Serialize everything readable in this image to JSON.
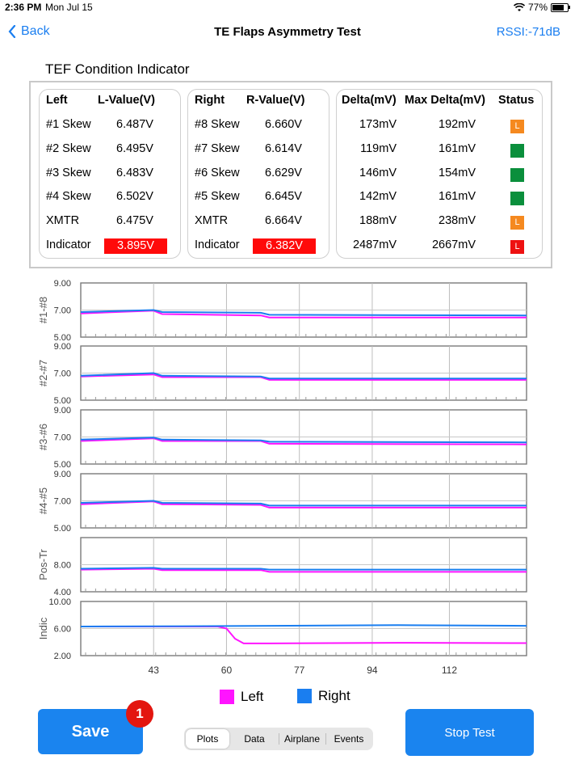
{
  "status_bar": {
    "time": "2:36 PM",
    "date": "Mon Jul 15",
    "battery": "77%"
  },
  "nav": {
    "back_label": "Back",
    "title": "TE Flaps Asymmetry Test",
    "rssi": "RSSI:-71dB"
  },
  "section_title": "TEF Condition Indicator",
  "left_table": {
    "headers": [
      "Left",
      "L-Value(V)"
    ],
    "rows": [
      [
        "#1 Skew",
        "6.487V"
      ],
      [
        "#2 Skew",
        "6.495V"
      ],
      [
        "#3 Skew",
        "6.483V"
      ],
      [
        "#4 Skew",
        "6.502V"
      ],
      [
        "XMTR",
        "6.475V"
      ],
      [
        "Indicator",
        "3.895V"
      ]
    ]
  },
  "right_table": {
    "headers": [
      "Right",
      "R-Value(V)"
    ],
    "rows": [
      [
        "#8 Skew",
        "6.660V"
      ],
      [
        "#7 Skew",
        "6.614V"
      ],
      [
        "#6 Skew",
        "6.629V"
      ],
      [
        "#5 Skew",
        "6.645V"
      ],
      [
        "XMTR",
        "6.664V"
      ],
      [
        "Indicator",
        "6.382V"
      ]
    ]
  },
  "delta_table": {
    "headers": [
      "Delta(mV)",
      "Max Delta(mV)",
      "Status"
    ],
    "rows": [
      {
        "delta": "173mV",
        "max": "192mV",
        "status": "L",
        "color": "#f5891f"
      },
      {
        "delta": "119mV",
        "max": "161mV",
        "status": "",
        "color": "#0a8f3c"
      },
      {
        "delta": "146mV",
        "max": "154mV",
        "status": "",
        "color": "#0a8f3c"
      },
      {
        "delta": "142mV",
        "max": "161mV",
        "status": "",
        "color": "#0a8f3c"
      },
      {
        "delta": "188mV",
        "max": "238mV",
        "status": "L",
        "color": "#f5891f"
      },
      {
        "delta": "2487mV",
        "max": "2667mV",
        "status": "L",
        "color": "#ee1111"
      }
    ]
  },
  "colors": {
    "left": "#ff14ff",
    "right": "#1a7ef0",
    "alert": "#ff0a0a",
    "accent": "#1a84ef"
  },
  "chart_data": {
    "type": "line",
    "x_ticks": [
      "43",
      "60",
      "77",
      "94",
      "112"
    ],
    "xlim": [
      26,
      130
    ],
    "panels": [
      {
        "label": "#1-#8",
        "ylim": [
          5.0,
          9.0
        ],
        "y_ticks": [
          "5.00",
          "7.00",
          "9.00"
        ],
        "series": [
          {
            "name": "Left",
            "x": [
              26,
              43,
              45,
              68,
              70,
              130
            ],
            "y": [
              6.75,
              6.95,
              6.7,
              6.6,
              6.45,
              6.45
            ]
          },
          {
            "name": "Right",
            "x": [
              26,
              43,
              45,
              68,
              70,
              130
            ],
            "y": [
              6.85,
              7.0,
              6.85,
              6.8,
              6.65,
              6.6
            ]
          }
        ]
      },
      {
        "label": "#2-#7",
        "ylim": [
          5.0,
          9.0
        ],
        "y_ticks": [
          "5.00",
          "7.00",
          "9.00"
        ],
        "series": [
          {
            "name": "Left",
            "x": [
              26,
              43,
              45,
              68,
              70,
              130
            ],
            "y": [
              6.75,
              6.9,
              6.7,
              6.7,
              6.5,
              6.5
            ]
          },
          {
            "name": "Right",
            "x": [
              26,
              43,
              45,
              68,
              70,
              130
            ],
            "y": [
              6.8,
              7.0,
              6.8,
              6.75,
              6.6,
              6.6
            ]
          }
        ]
      },
      {
        "label": "#3-#6",
        "ylim": [
          5.0,
          9.0
        ],
        "y_ticks": [
          "5.00",
          "7.00",
          "9.00"
        ],
        "series": [
          {
            "name": "Left",
            "x": [
              26,
              43,
              45,
              68,
              70,
              130
            ],
            "y": [
              6.7,
              6.9,
              6.7,
              6.7,
              6.5,
              6.45
            ]
          },
          {
            "name": "Right",
            "x": [
              26,
              43,
              45,
              68,
              70,
              130
            ],
            "y": [
              6.8,
              6.95,
              6.8,
              6.75,
              6.65,
              6.6
            ]
          }
        ]
      },
      {
        "label": "#4-#5",
        "ylim": [
          5.0,
          9.0
        ],
        "y_ticks": [
          "5.00",
          "7.00",
          "9.00"
        ],
        "series": [
          {
            "name": "Left",
            "x": [
              26,
              43,
              45,
              68,
              70,
              130
            ],
            "y": [
              6.75,
              6.95,
              6.75,
              6.7,
              6.5,
              6.5
            ]
          },
          {
            "name": "Right",
            "x": [
              26,
              43,
              45,
              68,
              70,
              130
            ],
            "y": [
              6.85,
              7.0,
              6.85,
              6.8,
              6.65,
              6.65
            ]
          }
        ]
      },
      {
        "label": "Pos-Tr",
        "ylim": [
          4.0,
          10.0
        ],
        "y_ticks": [
          "4.00",
          "8.00"
        ],
        "series": [
          {
            "name": "Left",
            "x": [
              26,
              43,
              45,
              68,
              70,
              130
            ],
            "y": [
              6.45,
              6.55,
              6.4,
              6.4,
              6.2,
              6.2
            ]
          },
          {
            "name": "Right",
            "x": [
              26,
              43,
              45,
              68,
              70,
              130
            ],
            "y": [
              6.55,
              6.65,
              6.55,
              6.55,
              6.45,
              6.45
            ]
          }
        ]
      },
      {
        "label": "Indic",
        "ylim": [
          2.0,
          10.0
        ],
        "y_ticks": [
          "2.00",
          "6.00",
          "10.00"
        ],
        "series": [
          {
            "name": "Left",
            "x": [
              26,
              58,
              60,
              62,
              64,
              70,
              100,
              130
            ],
            "y": [
              6.3,
              6.3,
              6.0,
              4.5,
              3.8,
              3.8,
              3.9,
              3.85
            ]
          },
          {
            "name": "Right",
            "x": [
              26,
              50,
              70,
              100,
              130
            ],
            "y": [
              6.3,
              6.35,
              6.4,
              6.5,
              6.4
            ]
          }
        ]
      }
    ]
  },
  "legend": {
    "left": "Left",
    "right": "Right"
  },
  "buttons": {
    "save": "Save",
    "badge": "1",
    "stop": "Stop Test"
  },
  "segments": [
    "Plots",
    "Data",
    "Airplane",
    "Events"
  ]
}
